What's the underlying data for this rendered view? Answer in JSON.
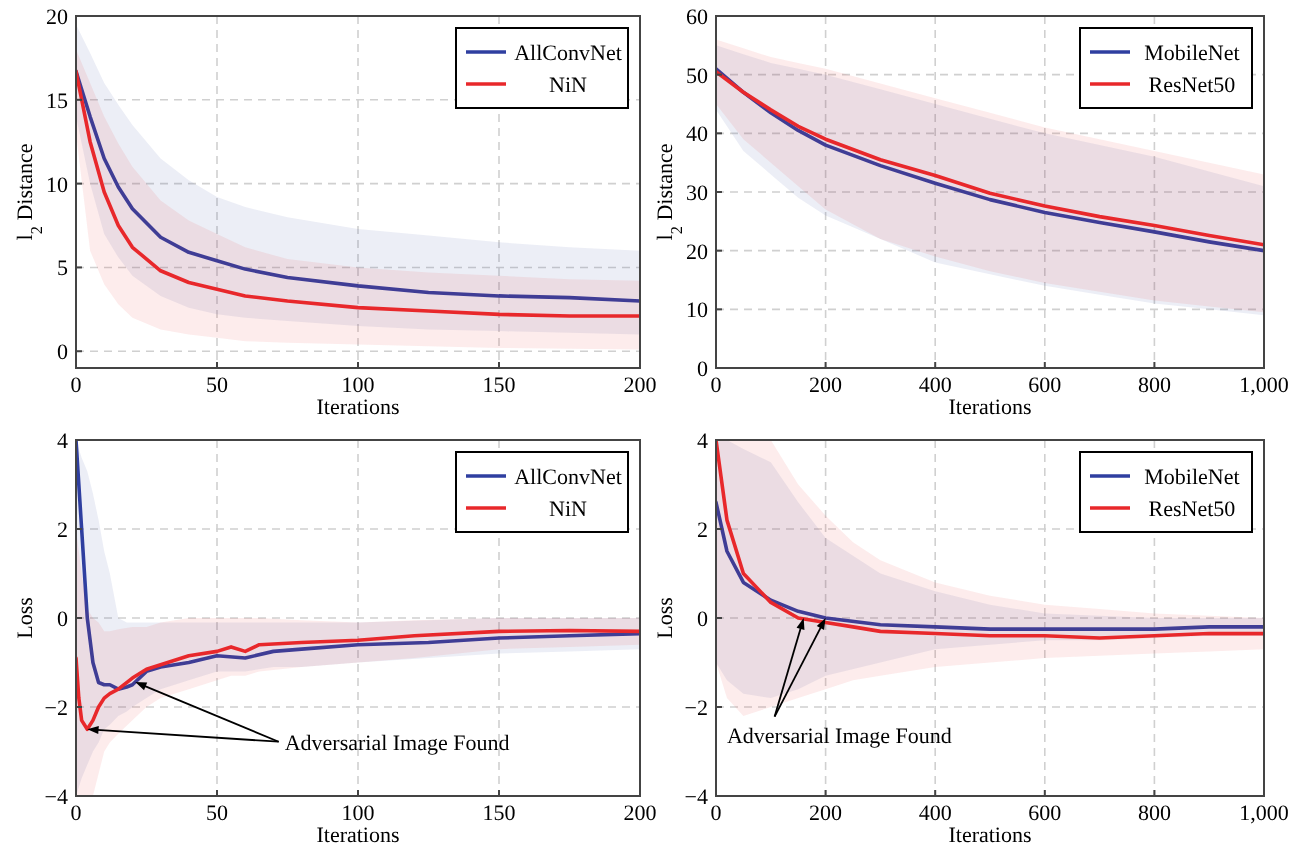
{
  "chart_data": [
    {
      "type": "line",
      "xlabel": "Iterations",
      "ylabel": "l$_{2}$ Distance",
      "xlim": [
        0,
        200
      ],
      "ylim": [
        -1,
        20
      ],
      "xticks": [
        0,
        50,
        100,
        150,
        200
      ],
      "yticks": [
        0,
        5,
        10,
        15,
        20
      ],
      "grid": true,
      "legend": "top right",
      "line_style": "solid",
      "marker": "none",
      "series": [
        {
          "name": "AllConvNet",
          "color": "#2f3fa0",
          "x": [
            0,
            5,
            10,
            15,
            20,
            30,
            40,
            50,
            60,
            75,
            100,
            125,
            150,
            175,
            200
          ],
          "values": [
            16.7,
            14,
            11.5,
            9.8,
            8.5,
            6.8,
            5.9,
            5.4,
            4.9,
            4.4,
            3.9,
            3.5,
            3.3,
            3.2,
            3.0
          ],
          "upper": [
            19.5,
            17.8,
            16,
            14.7,
            13.5,
            11.5,
            10.2,
            9.2,
            8.6,
            8,
            7.3,
            6.9,
            6.5,
            6.2,
            6
          ],
          "lower": [
            14,
            10,
            7,
            5.6,
            4.5,
            3.3,
            2.6,
            2.2,
            2,
            1.8,
            1.5,
            1.3,
            1.2,
            1.1,
            1
          ]
        },
        {
          "name": "NiN",
          "color": "#e8282b",
          "x": [
            0,
            5,
            10,
            15,
            20,
            30,
            40,
            50,
            60,
            75,
            100,
            125,
            150,
            175,
            200
          ],
          "values": [
            16.7,
            12.5,
            9.5,
            7.5,
            6.2,
            4.8,
            4.1,
            3.7,
            3.3,
            3.0,
            2.6,
            2.4,
            2.2,
            2.1,
            2.1
          ],
          "upper": [
            18,
            16,
            14,
            12.4,
            11,
            9,
            7.8,
            7,
            6.2,
            5.5,
            5,
            4.7,
            4.5,
            4.3,
            4.2
          ],
          "lower": [
            13,
            6,
            4,
            2.8,
            2,
            1.3,
            1,
            0.8,
            0.6,
            0.5,
            0.4,
            0.3,
            0.2,
            0.15,
            0.1
          ]
        }
      ]
    },
    {
      "type": "line",
      "xlabel": "Iterations",
      "ylabel": "l$_{2}$ Distance",
      "xlim": [
        0,
        1000
      ],
      "ylim": [
        0,
        60
      ],
      "xticks": [
        0,
        200,
        400,
        600,
        800,
        {
          "value": 1000,
          "label": "1,000"
        }
      ],
      "yticks": [
        0,
        10,
        20,
        30,
        40,
        50,
        60
      ],
      "grid": true,
      "legend": "top right",
      "line_style": "solid",
      "marker": "none",
      "series": [
        {
          "name": "MobileNet",
          "color": "#2f3fa0",
          "x": [
            0,
            50,
            100,
            150,
            200,
            300,
            400,
            500,
            600,
            700,
            800,
            900,
            1000
          ],
          "values": [
            51,
            47,
            43.5,
            40.5,
            38,
            34.5,
            31.5,
            28.7,
            26.5,
            24.8,
            23.2,
            21.5,
            20
          ],
          "upper": [
            55,
            53.5,
            52,
            51,
            50,
            47.5,
            45,
            42.5,
            40,
            38,
            36,
            33.5,
            31
          ],
          "lower": [
            44,
            37,
            33,
            29,
            26,
            22,
            18,
            16,
            14,
            12.5,
            11,
            10,
            9
          ]
        },
        {
          "name": "ResNet50",
          "color": "#e8282b",
          "x": [
            0,
            50,
            100,
            150,
            200,
            300,
            400,
            500,
            600,
            700,
            800,
            900,
            1000
          ],
          "values": [
            50.5,
            47,
            44,
            41.2,
            39,
            35.5,
            32.8,
            29.8,
            27.6,
            25.8,
            24.3,
            22.6,
            21
          ],
          "upper": [
            56,
            54.5,
            53,
            52,
            51,
            48.5,
            46,
            43.5,
            41,
            39,
            37,
            35,
            33
          ],
          "lower": [
            45,
            39,
            35,
            31,
            27,
            22,
            19,
            16.5,
            14.5,
            13,
            11.5,
            10.5,
            9.5
          ]
        }
      ]
    },
    {
      "type": "line",
      "xlabel": "Iterations",
      "ylabel": "Loss",
      "xlim": [
        0,
        200
      ],
      "ylim": [
        -4,
        4
      ],
      "xticks": [
        0,
        50,
        100,
        150,
        200
      ],
      "yticks": [
        -4,
        -2,
        0,
        2,
        4
      ],
      "grid": true,
      "legend": "top right",
      "line_style": "solid",
      "marker": "none",
      "annotations": [
        {
          "text": "Adversarial Image Found",
          "x": 4,
          "y": -2.5
        }
      ],
      "series": [
        {
          "name": "AllConvNet",
          "color": "#2f3fa0",
          "x": [
            0,
            2,
            4,
            6,
            8,
            10,
            12,
            15,
            18,
            20,
            25,
            30,
            40,
            50,
            60,
            70,
            80,
            100,
            125,
            150,
            175,
            200
          ],
          "values": [
            4,
            2,
            0,
            -1,
            -1.45,
            -1.5,
            -1.5,
            -1.6,
            -1.55,
            -1.5,
            -1.2,
            -1.1,
            -1,
            -0.85,
            -0.9,
            -0.75,
            -0.7,
            -0.6,
            -0.55,
            -0.45,
            -0.4,
            -0.35
          ],
          "upper": [
            4,
            3.6,
            3.3,
            2.8,
            2.2,
            1.5,
            1,
            0,
            -0.1,
            -0.1,
            -0.1,
            -0.1,
            -0.1,
            -0.1,
            -0.1,
            -0.1,
            -0.1,
            -0.1,
            -0.05,
            0,
            0,
            0
          ],
          "lower": [
            -4,
            -3.6,
            -3.3,
            -3,
            -2.8,
            -2.5,
            -2.4,
            -2.2,
            -2.1,
            -2,
            -1.8,
            -1.6,
            -1.4,
            -1.2,
            -1.2,
            -1.1,
            -1.1,
            -1,
            -0.9,
            -0.8,
            -0.75,
            -0.7
          ]
        },
        {
          "name": "NiN",
          "color": "#e8282b",
          "x": [
            0,
            1,
            2,
            4,
            6,
            8,
            10,
            12,
            15,
            20,
            25,
            30,
            40,
            50,
            55,
            60,
            65,
            80,
            100,
            120,
            150,
            175,
            200
          ],
          "values": [
            -0.9,
            -1.8,
            -2.3,
            -2.5,
            -2.3,
            -2.0,
            -1.8,
            -1.7,
            -1.6,
            -1.35,
            -1.15,
            -1.05,
            -0.85,
            -0.75,
            -0.65,
            -0.75,
            -0.6,
            -0.55,
            -0.5,
            -0.4,
            -0.3,
            -0.28,
            -0.3
          ],
          "upper": [
            2,
            1.5,
            1,
            0.2,
            0,
            -0.1,
            -0.3,
            -0.3,
            -0.25,
            -0.2,
            -0.2,
            -0.1,
            0,
            0,
            0,
            0,
            0,
            -0.05,
            -0.1,
            -0.05,
            0,
            0,
            0
          ],
          "lower": [
            -4,
            -4,
            -4,
            -4,
            -4,
            -3.5,
            -3,
            -2.8,
            -2.6,
            -2.3,
            -2,
            -1.8,
            -1.6,
            -1.4,
            -1.3,
            -1.3,
            -1.2,
            -1.1,
            -1,
            -0.9,
            -0.7,
            -0.65,
            -0.6
          ]
        }
      ]
    },
    {
      "type": "line",
      "xlabel": "Iterations",
      "ylabel": "Loss",
      "xlim": [
        0,
        1000
      ],
      "ylim": [
        -4,
        4
      ],
      "xticks": [
        0,
        200,
        400,
        600,
        800,
        {
          "value": 1000,
          "label": "1,000"
        }
      ],
      "yticks": [
        -4,
        -2,
        0,
        2,
        4
      ],
      "grid": true,
      "legend": "top right",
      "line_style": "solid",
      "marker": "none",
      "annotations": [
        {
          "text": "Adversarial Image Found",
          "x": 160,
          "y": 0
        }
      ],
      "series": [
        {
          "name": "MobileNet",
          "color": "#2f3fa0",
          "x": [
            0,
            20,
            50,
            100,
            150,
            200,
            300,
            400,
            500,
            600,
            700,
            800,
            900,
            1000
          ],
          "values": [
            2.6,
            1.5,
            0.8,
            0.4,
            0.15,
            0,
            -0.15,
            -0.2,
            -0.25,
            -0.25,
            -0.25,
            -0.25,
            -0.2,
            -0.2
          ],
          "upper": [
            4,
            4,
            3.8,
            3.5,
            2.6,
            1.8,
            1,
            0.6,
            0.3,
            0.1,
            0.05,
            0,
            0,
            0
          ],
          "lower": [
            -1,
            -1.4,
            -1.7,
            -1.8,
            -1.6,
            -1.3,
            -1,
            -0.7,
            -0.6,
            -0.5,
            -0.5,
            -0.45,
            -0.4,
            -0.4
          ]
        },
        {
          "name": "ResNet50",
          "color": "#e8282b",
          "x": [
            0,
            20,
            50,
            100,
            150,
            200,
            250,
            300,
            400,
            500,
            600,
            700,
            800,
            900,
            1000
          ],
          "values": [
            4,
            2.2,
            1,
            0.35,
            0,
            -0.1,
            -0.2,
            -0.3,
            -0.35,
            -0.4,
            -0.4,
            -0.45,
            -0.4,
            -0.35,
            -0.35
          ],
          "upper": [
            4,
            4,
            4,
            4,
            3,
            2.3,
            1.7,
            1.3,
            0.8,
            0.5,
            0.3,
            0.2,
            0.1,
            0.05,
            0
          ],
          "lower": [
            -1,
            -1.8,
            -2.2,
            -2,
            -1.8,
            -1.6,
            -1.4,
            -1.3,
            -1.1,
            -1,
            -0.9,
            -0.85,
            -0.8,
            -0.75,
            -0.7
          ]
        }
      ]
    }
  ]
}
